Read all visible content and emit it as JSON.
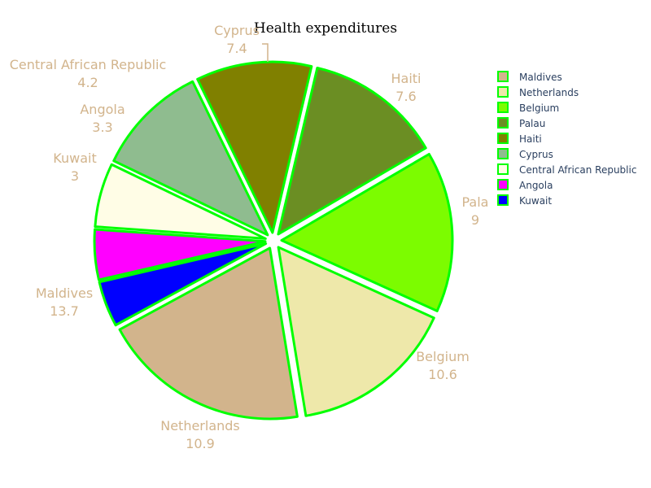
{
  "chart_data": {
    "type": "pie",
    "title": "Health expenditures",
    "categories": [
      "Maldives",
      "Netherlands",
      "Belgium",
      "Palau",
      "Haiti",
      "Cyprus",
      "Central African Republic",
      "Angola",
      "Kuwait"
    ],
    "values": [
      13.7,
      10.9,
      10.6,
      9,
      7.6,
      7.4,
      4.2,
      3.3,
      3
    ],
    "label_texts": [
      "Maldives",
      "Netherlands",
      "Belgium",
      "Pala",
      "Haiti",
      "Cyprus",
      "Central African Republic",
      "Angola",
      "Kuwait"
    ],
    "value_labels": [
      "13.7",
      "10.9",
      "10.6",
      "9",
      "7.6",
      "7.4",
      "4.2",
      "3.3",
      "3"
    ],
    "colors": [
      "#d2b48c",
      "#eee8aa",
      "#7cfc00",
      "#6b8e23",
      "#808000",
      "#8fbc8f",
      "#fffde6",
      "#ff00ff",
      "#0000ff"
    ],
    "slice_border_color": "#00ff00",
    "label_color": "#d2b48c",
    "direction": "counterclockwise",
    "legend": {
      "placement": "top-right",
      "entries": [
        "Maldives",
        "Netherlands",
        "Belgium",
        "Palau",
        "Haiti",
        "Cyprus",
        "Central African Republic",
        "Angola",
        "Kuwait"
      ]
    }
  }
}
